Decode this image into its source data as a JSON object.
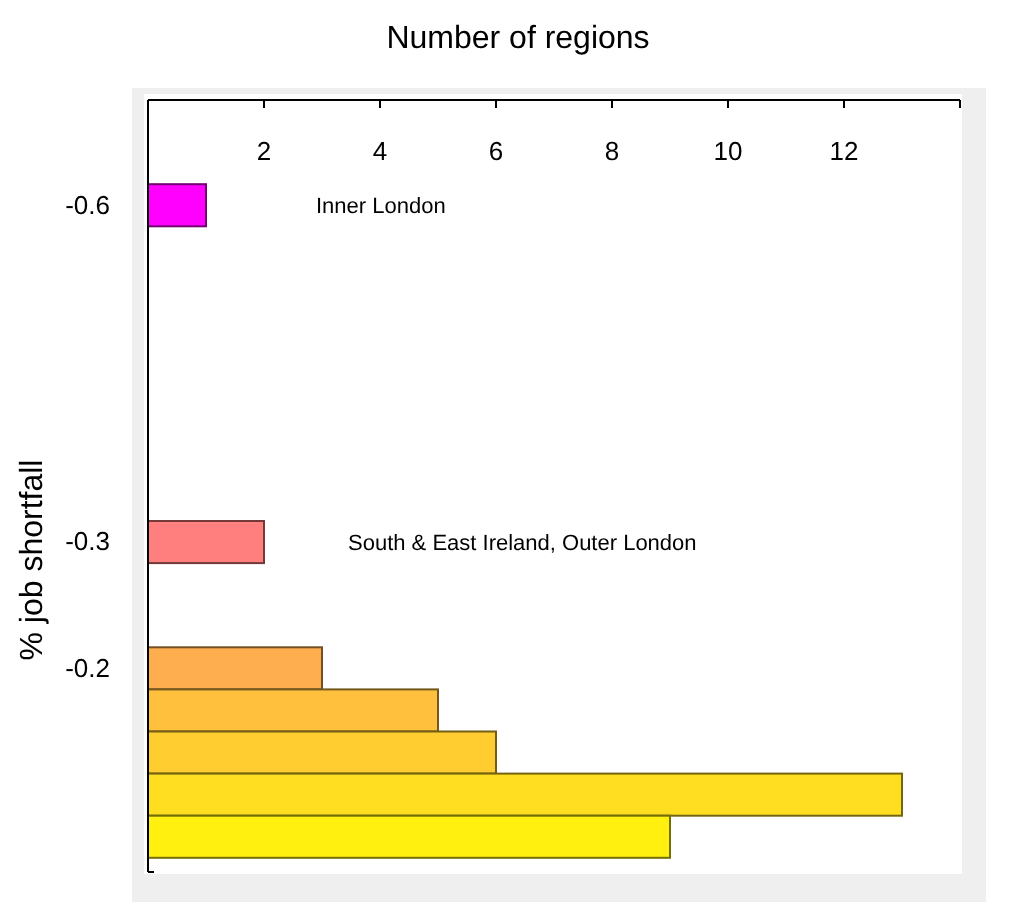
{
  "chart_data": {
    "type": "bar",
    "orientation": "horizontal",
    "xlabel": "Number of regions",
    "ylabel": "% job shortfall",
    "categories": [
      null,
      null,
      "-0.6",
      null,
      null,
      null,
      null,
      null,
      null,
      null,
      "-0.3",
      null,
      null,
      "-0.2",
      null,
      null,
      null,
      null
    ],
    "values": [
      null,
      null,
      1,
      null,
      null,
      null,
      null,
      null,
      null,
      null,
      2,
      null,
      null,
      3,
      5,
      6,
      13,
      9
    ],
    "colors": [
      null,
      null,
      "#ff00ff",
      null,
      null,
      null,
      null,
      null,
      null,
      null,
      "#ff7f7f",
      null,
      null,
      "#ffae4f",
      "#ffc13d",
      "#ffcd2f",
      "#ffde22",
      "#fff010"
    ],
    "xlim": [
      0,
      14
    ],
    "xticks": [
      2,
      4,
      6,
      8,
      10,
      12,
      {
        "value": 14,
        "label": null
      }
    ],
    "annotations": [
      "Inner London",
      "South & East Ireland, Outer London"
    ]
  }
}
